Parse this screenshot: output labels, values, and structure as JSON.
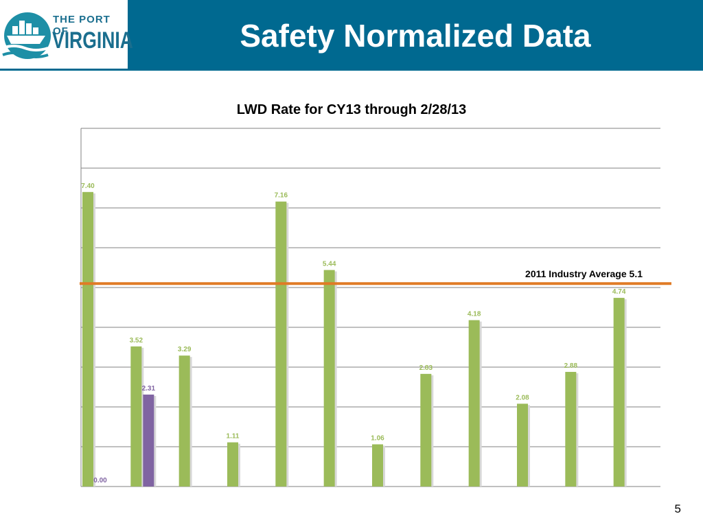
{
  "header": {
    "title": "Safety Normalized Data",
    "logo_line1": "THE PORT OF",
    "logo_line2": "VIRGINIA",
    "bg_color": "#006990"
  },
  "page_number": "5",
  "chart_data": {
    "type": "bar",
    "title": "LWD Rate for CY13 through 2/28/13",
    "xlabel": "",
    "ylabel": "",
    "ylim": [
      0,
      9
    ],
    "grid": true,
    "series": [
      {
        "color": "#9BBB59",
        "values": [
          7.4,
          3.52,
          3.29,
          1.11,
          7.16,
          5.44,
          1.06,
          2.83,
          4.18,
          2.08,
          2.88,
          4.74
        ]
      },
      {
        "color": "#8064A2",
        "values": [
          0.0,
          2.31,
          null,
          null,
          null,
          null,
          null,
          null,
          null,
          null,
          null,
          null
        ]
      }
    ],
    "data_labels": [
      [
        "7.40",
        "3.52",
        "3.29",
        "1.11",
        "7.16",
        "5.44",
        "1.06",
        "2.83",
        "4.18",
        "2.08",
        "2.88",
        "4.74"
      ],
      [
        "0.00",
        "2.31",
        "",
        "",
        "",
        "",
        "",
        "",
        "",
        "",
        "",
        ""
      ]
    ],
    "reference_line": {
      "value": 5.1,
      "label": "2011 Industry  Average 5.1",
      "color": "#E07B26"
    }
  }
}
